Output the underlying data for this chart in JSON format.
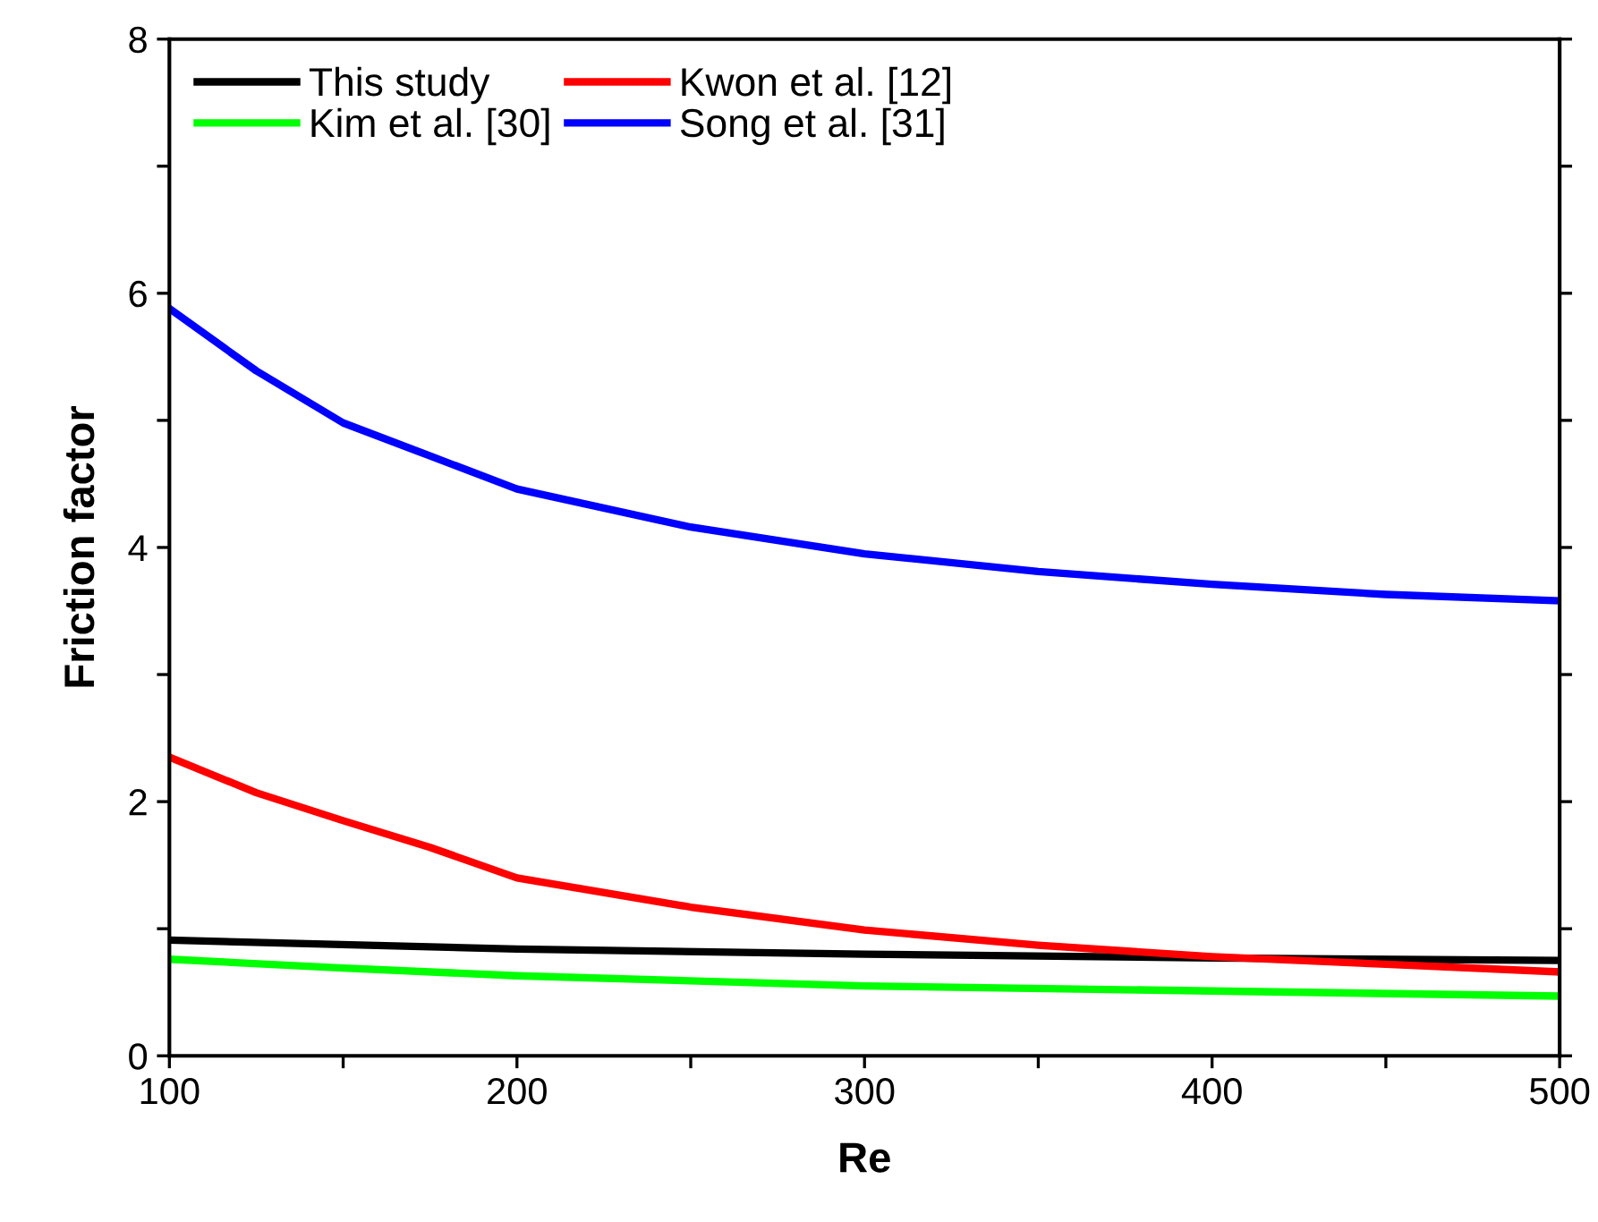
{
  "chart_data": {
    "type": "line",
    "xlabel": "Re",
    "ylabel": "Friction factor",
    "xlim": [
      100,
      500
    ],
    "ylim": [
      0,
      8
    ],
    "xticks": [
      100,
      {
        "value": 150,
        "label": null
      },
      200,
      {
        "value": 250,
        "label": null
      },
      300,
      {
        "value": 350,
        "label": null
      },
      400,
      {
        "value": 450,
        "label": null
      },
      500
    ],
    "yticks": [
      0,
      {
        "value": 1,
        "label": null
      },
      2,
      {
        "value": 3,
        "label": null
      },
      4,
      {
        "value": 5,
        "label": null
      },
      6,
      {
        "value": 7,
        "label": null
      },
      8
    ],
    "grid": false,
    "legend": "top left",
    "marker": "none",
    "line_style": "solid",
    "series": [
      {
        "name": "This study",
        "color": "#000000",
        "x": [
          100,
          200,
          300,
          400,
          500
        ],
        "values": [
          0.91,
          0.84,
          0.8,
          0.77,
          0.75
        ]
      },
      {
        "name": "Kim et al. [30]",
        "color": "#00ff00",
        "x": [
          100,
          150,
          200,
          300,
          400,
          500
        ],
        "values": [
          0.76,
          0.69,
          0.63,
          0.55,
          0.51,
          0.47
        ]
      },
      {
        "name": "Kwon et al. [12]",
        "color": "#ff0000",
        "x": [
          100,
          125,
          150,
          175,
          200,
          250,
          300,
          350,
          400,
          450,
          500
        ],
        "values": [
          2.35,
          2.07,
          1.85,
          1.64,
          1.4,
          1.17,
          0.99,
          0.87,
          0.78,
          0.72,
          0.66
        ]
      },
      {
        "name": "Song et al. [31]",
        "color": "#0000ff",
        "x": [
          100,
          125,
          150,
          175,
          200,
          250,
          300,
          350,
          400,
          450,
          500
        ],
        "values": [
          5.88,
          5.39,
          4.98,
          4.72,
          4.46,
          4.16,
          3.95,
          3.81,
          3.71,
          3.63,
          3.58
        ]
      }
    ]
  }
}
